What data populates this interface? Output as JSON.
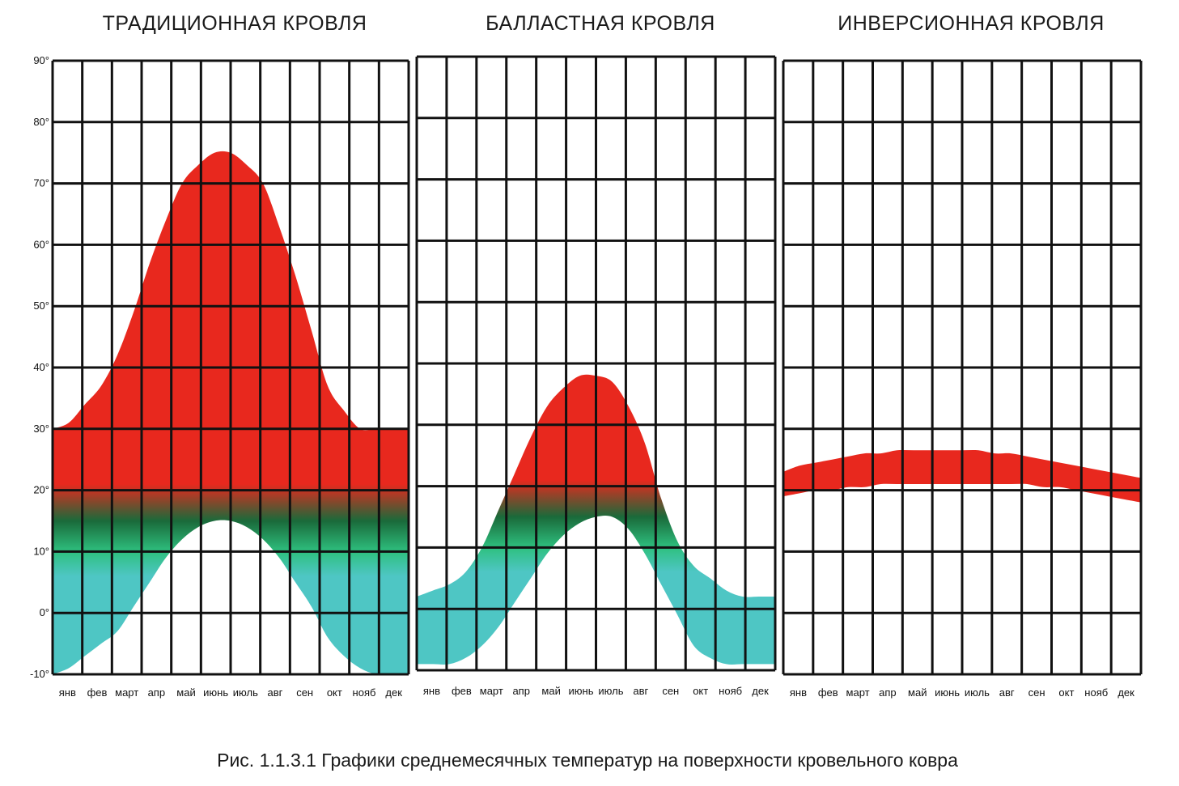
{
  "caption": "Рис. 1.1.3.1 Графики среднемесячных температур на поверхности кровельного ковра",
  "colors": {
    "hot": "#e8281e",
    "mid": "#1a6a3a",
    "green": "#2ec07f",
    "cold": "#4ec6c4",
    "grid": "#111111"
  },
  "chart_data": [
    {
      "type": "area",
      "title": "ТРАДИЦИОННАЯ КРОВЛЯ",
      "categories": [
        "янв",
        "фев",
        "март",
        "апр",
        "май",
        "июнь",
        "июль",
        "авг",
        "сен",
        "окт",
        "нояб",
        "дек"
      ],
      "yticks": [
        "90°",
        "80°",
        "70°",
        "60°",
        "50°",
        "40°",
        "30°",
        "20°",
        "10°",
        "0°",
        "-10°"
      ],
      "ylim": [
        -10,
        90
      ],
      "x": [
        0,
        0.5,
        1,
        1.5,
        2,
        2.5,
        3,
        3.5,
        4,
        4.5,
        5,
        5.5,
        6,
        6.5,
        7,
        7.5,
        8,
        8.5,
        9,
        9.5,
        10,
        10.5,
        11
      ],
      "series": [
        {
          "values_high": [
            30,
            31,
            34,
            37,
            42,
            49,
            57,
            64,
            70,
            73,
            75,
            75,
            73,
            70,
            63,
            55,
            46,
            37,
            33,
            30,
            30,
            30,
            30
          ],
          "values_low": [
            -10,
            -9,
            -7,
            -5,
            -3,
            1,
            5,
            9,
            12,
            14,
            15,
            15,
            14,
            12,
            9,
            5,
            1,
            -4,
            -7,
            -9,
            -10,
            -10,
            -10
          ]
        }
      ]
    },
    {
      "type": "area",
      "title": "БАЛЛАСТНАЯ КРОВЛЯ",
      "categories": [
        "янв",
        "фев",
        "март",
        "апр",
        "май",
        "июнь",
        "июль",
        "авг",
        "сен",
        "окт",
        "нояб",
        "дек"
      ],
      "yticks": [],
      "ylim": [
        -10,
        90
      ],
      "x": [
        0,
        0.5,
        1,
        1.5,
        2,
        2.5,
        3,
        3.5,
        4,
        4.5,
        5,
        5.5,
        6,
        6.5,
        7,
        7.5,
        8,
        8.5,
        9,
        9.5,
        10,
        10.5,
        11
      ],
      "series": [
        {
          "values_high": [
            2,
            3,
            4,
            6,
            10,
            16,
            22,
            28,
            33,
            36,
            38,
            38,
            37,
            33,
            27,
            18,
            11,
            7,
            5,
            3,
            2,
            2,
            2
          ],
          "values_low": [
            -9,
            -9,
            -9,
            -8,
            -6,
            -3,
            1,
            5,
            9,
            12,
            14,
            15,
            15,
            13,
            9,
            4,
            -1,
            -6,
            -8,
            -9,
            -9,
            -9,
            -9
          ]
        }
      ]
    },
    {
      "type": "area",
      "title": "ИНВЕРСИОННАЯ КРОВЛЯ",
      "categories": [
        "янв",
        "фев",
        "март",
        "апр",
        "май",
        "июнь",
        "июль",
        "авг",
        "сен",
        "окт",
        "нояб",
        "дек"
      ],
      "yticks": [],
      "ylim": [
        -10,
        90
      ],
      "x": [
        0,
        0.5,
        1,
        1.5,
        2,
        2.5,
        3,
        3.5,
        4,
        4.5,
        5,
        5.5,
        6,
        6.5,
        7,
        7.5,
        8,
        8.5,
        9,
        9.5,
        10,
        10.5,
        11
      ],
      "series": [
        {
          "values_high": [
            23,
            24,
            24.5,
            25,
            25.5,
            26,
            26,
            26.5,
            26.5,
            26.5,
            26.5,
            26.5,
            26.5,
            26,
            26,
            25.5,
            25,
            24.5,
            24,
            23.5,
            23,
            22.5,
            22
          ],
          "values_low": [
            19,
            19.5,
            20,
            20,
            20.5,
            20.5,
            21,
            21,
            21,
            21,
            21,
            21,
            21,
            21,
            21,
            21,
            20.5,
            20.5,
            20,
            19.5,
            19,
            18.5,
            18
          ]
        }
      ]
    }
  ]
}
